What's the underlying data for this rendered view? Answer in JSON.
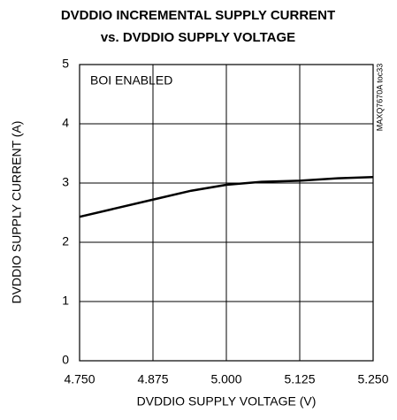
{
  "chart_data": {
    "type": "line",
    "title": [
      "DVDDIO INCREMENTAL SUPPLY CURRENT",
      "vs. DVDDIO SUPPLY VOLTAGE"
    ],
    "xlabel": "DVDDIO SUPPLY VOLTAGE (V)",
    "ylabel": "DVDDIO SUPPLY CURRENT (A)",
    "annotations": [
      "BOI ENABLED",
      "MAXQ7670A toc33"
    ],
    "x": [
      4.75,
      4.875,
      4.94,
      5.0,
      5.06,
      5.125,
      5.19,
      5.25
    ],
    "series": [
      {
        "name": "BOI ENABLED",
        "color": "#000000",
        "values": [
          2.43,
          2.72,
          2.87,
          2.97,
          3.02,
          3.04,
          3.08,
          3.1
        ]
      }
    ],
    "xlim": [
      4.75,
      5.25
    ],
    "xticks": [
      {
        "value": 4.75,
        "label": "4.750"
      },
      4.875,
      {
        "value": 5,
        "label": "5.000"
      },
      5.125,
      {
        "value": 5.25,
        "label": "5.250"
      }
    ],
    "ylim": [
      0,
      5
    ],
    "yticks": [
      0,
      1,
      2,
      3,
      4,
      5
    ],
    "grid": true
  }
}
